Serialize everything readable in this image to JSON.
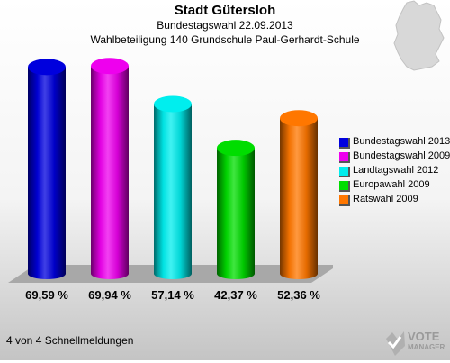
{
  "header": {
    "title": "Stadt Gütersloh",
    "subtitle1": "Bundestagswahl 22.09.2013",
    "subtitle2": "Wahlbeteiligung 140 Grundschule Paul-Gerhardt-Schule"
  },
  "footer": {
    "text": "4 von 4 Schnellmeldungen"
  },
  "logo": {
    "line1": "VOTE",
    "line2": "MANAGER"
  },
  "chart_data": {
    "type": "bar",
    "title": "Stadt Gütersloh",
    "subtitle": "Bundestagswahl 22.09.2013 / Wahlbeteiligung 140 Grundschule Paul-Gerhardt-Schule",
    "categories": [
      "Bundestagswahl 2013",
      "Bundestagswahl 2009",
      "Landtagswahl 2012",
      "Europawahl 2009",
      "Ratswahl 2009"
    ],
    "values": [
      69.59,
      69.94,
      57.14,
      42.37,
      52.36
    ],
    "labels": [
      "69,59 %",
      "69,94 %",
      "57,14 %",
      "42,37 %",
      "52,36 %"
    ],
    "colors": [
      "#0000dd",
      "#ee00ee",
      "#00eeee",
      "#00dd00",
      "#ff7700"
    ],
    "xlabel": "",
    "ylabel": "",
    "ylim": [
      0,
      75
    ],
    "legend_position": "right",
    "grid": false
  }
}
